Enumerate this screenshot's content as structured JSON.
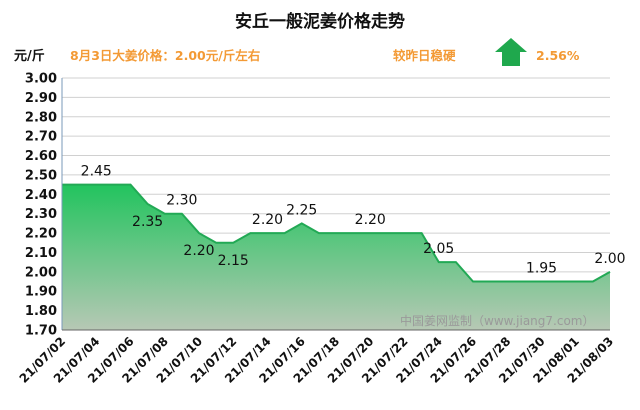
{
  "colors": {
    "accent": "#f39a35",
    "line": "#22a955",
    "fill_top": "#22c45e",
    "fill_bottom": "#b7c8b5",
    "up_arrow": "#1fa84d",
    "grid": "#d0d0d0"
  },
  "header": {
    "title": "安丘一般泥姜价格走势",
    "unit": "元/斤",
    "price_note": "8月3日大姜价格：2.00元/斤左右",
    "trend_note": "较昨日稳硬",
    "trend_icon": "up-arrow-icon",
    "change_pct": "2.56%"
  },
  "watermark": "中国姜网监制（www.jiang7.com）",
  "chart_data": {
    "type": "area",
    "title": "安丘一般泥姜价格走势",
    "ylabel": "元/斤",
    "ylim": [
      1.7,
      3.0
    ],
    "ystep": 0.1,
    "y_tick_labels": [
      "1.70",
      "1.80",
      "1.90",
      "2.00",
      "2.10",
      "2.20",
      "2.30",
      "2.40",
      "2.50",
      "2.60",
      "2.70",
      "2.80",
      "2.90",
      "3.00"
    ],
    "grid": true,
    "x": [
      "21/07/02",
      "21/07/03",
      "21/07/04",
      "21/07/05",
      "21/07/06",
      "21/07/07",
      "21/07/08",
      "21/07/09",
      "21/07/10",
      "21/07/11",
      "21/07/12",
      "21/07/13",
      "21/07/14",
      "21/07/15",
      "21/07/16",
      "21/07/17",
      "21/07/18",
      "21/07/19",
      "21/07/20",
      "21/07/21",
      "21/07/22",
      "21/07/23",
      "21/07/24",
      "21/07/25",
      "21/07/26",
      "21/07/27",
      "21/07/28",
      "21/07/29",
      "21/07/30",
      "21/07/31",
      "21/08/01",
      "21/08/02",
      "21/08/03"
    ],
    "x_tick_labels": [
      "21/07/02",
      "21/07/04",
      "21/07/06",
      "21/07/08",
      "21/07/10",
      "21/07/12",
      "21/07/14",
      "21/07/16",
      "21/07/18",
      "21/07/20",
      "21/07/22",
      "21/07/24",
      "21/07/26",
      "21/07/28",
      "21/07/30",
      "21/08/01",
      "21/08/03"
    ],
    "series": [
      {
        "values": [
          2.45,
          2.45,
          2.45,
          2.45,
          2.45,
          2.35,
          2.3,
          2.3,
          2.2,
          2.15,
          2.15,
          2.2,
          2.2,
          2.2,
          2.25,
          2.2,
          2.2,
          2.2,
          2.2,
          2.2,
          2.2,
          2.2,
          2.05,
          2.05,
          1.95,
          1.95,
          1.95,
          1.95,
          1.95,
          1.95,
          1.95,
          1.95,
          2.0
        ]
      }
    ],
    "data_labels": [
      {
        "index": 2,
        "text": "2.45",
        "pos": "above"
      },
      {
        "index": 5,
        "text": "2.35",
        "pos": "below"
      },
      {
        "index": 7,
        "text": "2.30",
        "pos": "above"
      },
      {
        "index": 8,
        "text": "2.20",
        "pos": "below"
      },
      {
        "index": 10,
        "text": "2.15",
        "pos": "below"
      },
      {
        "index": 12,
        "text": "2.20",
        "pos": "above"
      },
      {
        "index": 14,
        "text": "2.25",
        "pos": "above"
      },
      {
        "index": 18,
        "text": "2.20",
        "pos": "above"
      },
      {
        "index": 22,
        "text": "2.05",
        "pos": "above"
      },
      {
        "index": 28,
        "text": "1.95",
        "pos": "above"
      },
      {
        "index": 32,
        "text": "2.00",
        "pos": "above"
      }
    ]
  }
}
